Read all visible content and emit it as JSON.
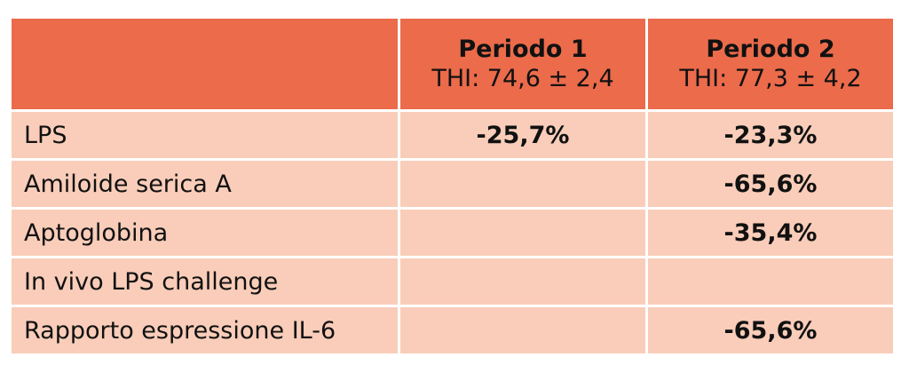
{
  "table": {
    "columns": [
      {
        "title": "Periodo 1",
        "subtitle": "THI: 74,6 ± 2,4"
      },
      {
        "title": "Periodo 2",
        "subtitle": "THI: 77,3 ± 4,2"
      }
    ],
    "rows": [
      {
        "label": "LPS",
        "values": [
          "-25,7%",
          "-23,3%"
        ]
      },
      {
        "label": "Amiloide serica A",
        "values": [
          null,
          "-65,6%"
        ]
      },
      {
        "label": "Aptoglobina",
        "values": [
          null,
          "-35,4%"
        ]
      },
      {
        "label": "In vivo LPS challenge",
        "values": [
          null,
          null
        ]
      },
      {
        "label": "Rapporto espressione IL-6",
        "values": [
          null,
          "-65,6%"
        ]
      }
    ]
  }
}
